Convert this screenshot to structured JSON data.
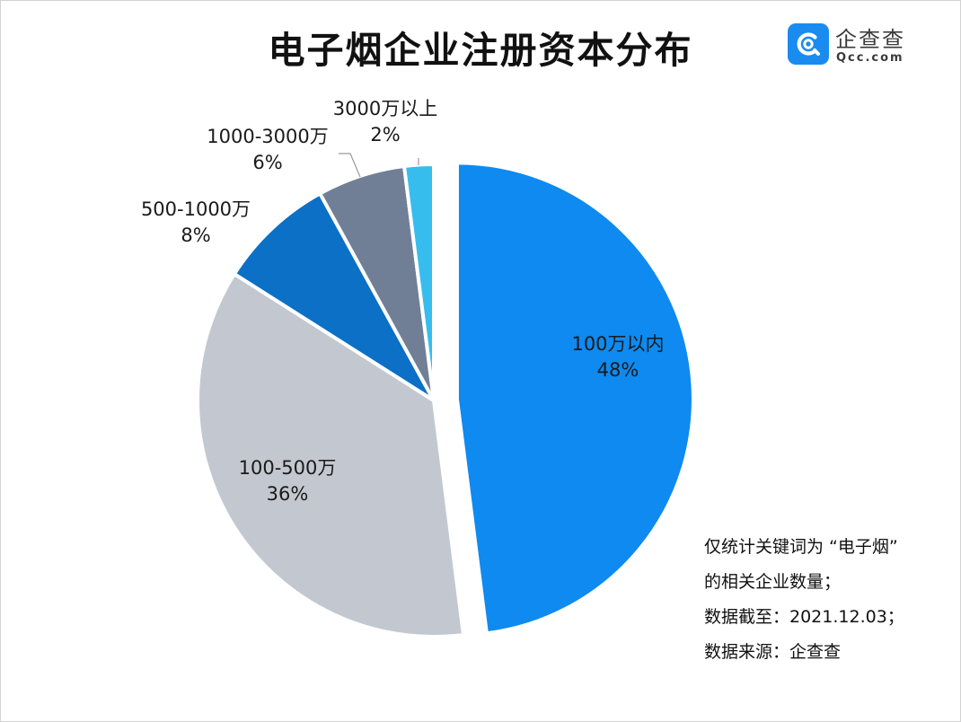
{
  "title": "电子烟企业注册资本分布",
  "brand": {
    "name": "企查查",
    "domain": "Qcc.com",
    "mark_color": "#1a8cf0"
  },
  "notes": [
    "仅统计关键词为 “电子烟”",
    "的相关企业数量；",
    "数据截至：2021.12.03；",
    "数据来源：企查查"
  ],
  "chart_data": {
    "type": "pie",
    "title": "电子烟企业注册资本分布",
    "start_angle_deg": 0,
    "direction": "clockwise",
    "exploded": "100万以内",
    "legend": "none",
    "slices": [
      {
        "label": "100万以内",
        "value_text": "48%",
        "value": 48,
        "color": "#0e8af0"
      },
      {
        "label": "100-500万",
        "value_text": "36%",
        "value": 36,
        "color": "#c3c8d0"
      },
      {
        "label": "500-1000万",
        "value_text": "8%",
        "value": 8,
        "color": "#0b70c6"
      },
      {
        "label": "1000-3000万",
        "value_text": "6%",
        "value": 6,
        "color": "#717f96"
      },
      {
        "label": "3000万以上",
        "value_text": "2%",
        "value": 2,
        "color": "#36bdee"
      }
    ]
  }
}
